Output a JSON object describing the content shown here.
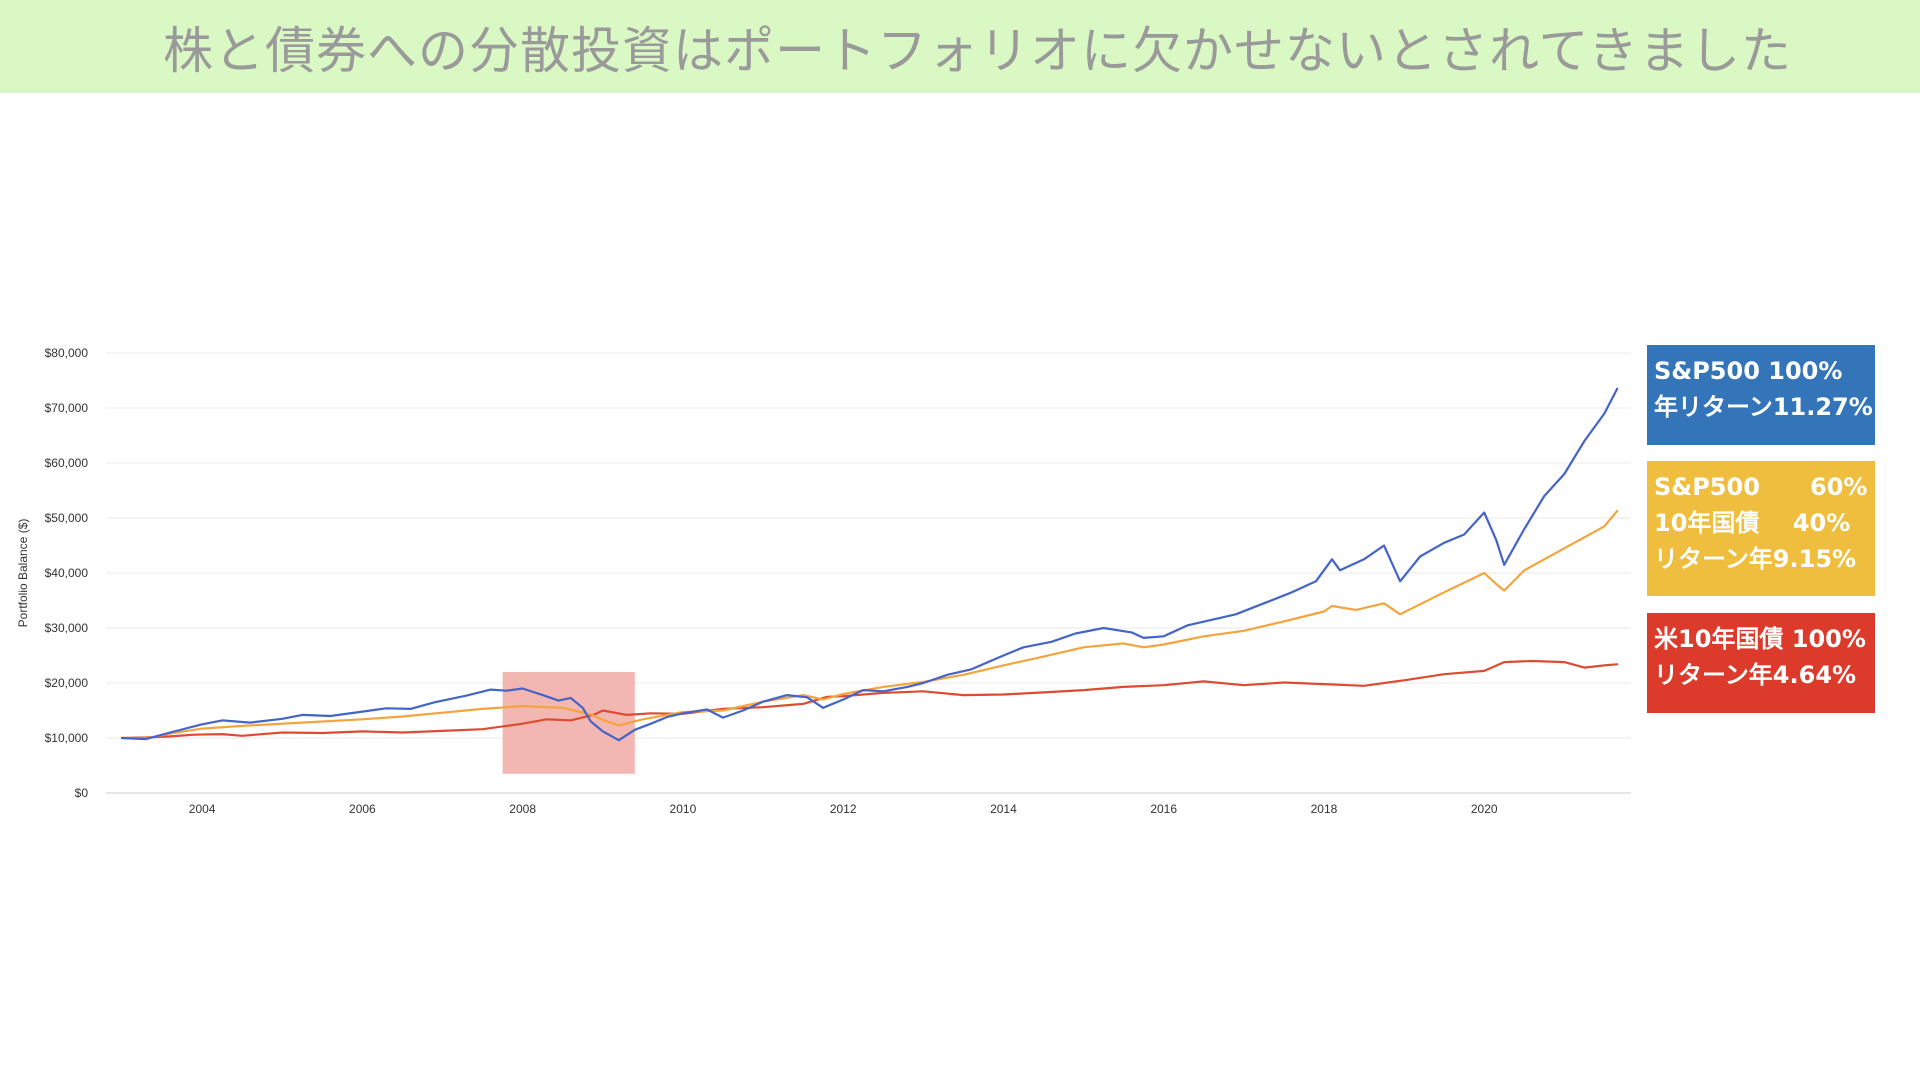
{
  "title": "株と債券への分散投資はポートフォリオに欠かせないとされてきました",
  "colors": {
    "title_bg": "#d9f8c4",
    "title_text": "#9a9a9a",
    "highlight": "#f0aaa4",
    "sp500": "#4464c8",
    "mix": "#f5a33c",
    "bond": "#dd4b33",
    "legend_sp500_bg": "#3375b8",
    "legend_mix_bg": "#efbe3e",
    "legend_bond_bg": "#dc3b2c"
  },
  "legend": [
    {
      "key": "sp500",
      "lines": [
        "S&P500 100%",
        "年リターン11.27%"
      ]
    },
    {
      "key": "mix",
      "lines": [
        "S&P500      60%",
        "10年国債    40%",
        "リターン年9.15%"
      ]
    },
    {
      "key": "bond",
      "lines": [
        "米10年国債 100%",
        "リターン年4.64%"
      ]
    }
  ],
  "chart_data": {
    "type": "line",
    "ylabel": "Portfolio Balance ($)",
    "xlabel": "",
    "x_range": [
      2003.0,
      2021.66
    ],
    "ylim": [
      0,
      80000
    ],
    "y_ticks": [
      "$0",
      "$10,000",
      "$20,000",
      "$30,000",
      "$40,000",
      "$50,000",
      "$60,000",
      "$70,000",
      "$80,000"
    ],
    "x_ticks": [
      "2004",
      "2006",
      "2008",
      "2010",
      "2012",
      "2014",
      "2016",
      "2018",
      "2020"
    ],
    "grid": true,
    "highlight_period": {
      "x": [
        2007.75,
        2009.4
      ],
      "y": [
        3500,
        22000
      ]
    },
    "series": [
      {
        "key": "sp500",
        "points": [
          [
            2003.0,
            10000
          ],
          [
            2003.3,
            9800
          ],
          [
            2003.6,
            11000
          ],
          [
            2004.0,
            12500
          ],
          [
            2004.25,
            13200
          ],
          [
            2004.6,
            12800
          ],
          [
            2005.0,
            13500
          ],
          [
            2005.25,
            14200
          ],
          [
            2005.6,
            14000
          ],
          [
            2006.0,
            14800
          ],
          [
            2006.3,
            15400
          ],
          [
            2006.6,
            15300
          ],
          [
            2006.9,
            16500
          ],
          [
            2007.3,
            17700
          ],
          [
            2007.6,
            18800
          ],
          [
            2007.8,
            18600
          ],
          [
            2008.0,
            19000
          ],
          [
            2008.25,
            17800
          ],
          [
            2008.45,
            16800
          ],
          [
            2008.6,
            17300
          ],
          [
            2008.75,
            15500
          ],
          [
            2008.85,
            13000
          ],
          [
            2009.0,
            11200
          ],
          [
            2009.2,
            9600
          ],
          [
            2009.4,
            11500
          ],
          [
            2009.6,
            12600
          ],
          [
            2009.8,
            13800
          ],
          [
            2010.0,
            14500
          ],
          [
            2010.3,
            15200
          ],
          [
            2010.5,
            13700
          ],
          [
            2010.75,
            15000
          ],
          [
            2011.0,
            16600
          ],
          [
            2011.3,
            17800
          ],
          [
            2011.55,
            17400
          ],
          [
            2011.75,
            15500
          ],
          [
            2012.0,
            17000
          ],
          [
            2012.25,
            18700
          ],
          [
            2012.5,
            18500
          ],
          [
            2012.8,
            19300
          ],
          [
            2013.0,
            20000
          ],
          [
            2013.3,
            21500
          ],
          [
            2013.6,
            22500
          ],
          [
            2014.0,
            25000
          ],
          [
            2014.25,
            26500
          ],
          [
            2014.6,
            27500
          ],
          [
            2014.9,
            29000
          ],
          [
            2015.25,
            30000
          ],
          [
            2015.6,
            29200
          ],
          [
            2015.75,
            28200
          ],
          [
            2016.0,
            28500
          ],
          [
            2016.3,
            30500
          ],
          [
            2016.6,
            31500
          ],
          [
            2016.9,
            32500
          ],
          [
            2017.25,
            34500
          ],
          [
            2017.6,
            36500
          ],
          [
            2017.9,
            38500
          ],
          [
            2018.1,
            42500
          ],
          [
            2018.2,
            40500
          ],
          [
            2018.5,
            42500
          ],
          [
            2018.75,
            45000
          ],
          [
            2018.95,
            38500
          ],
          [
            2019.2,
            43000
          ],
          [
            2019.5,
            45500
          ],
          [
            2019.75,
            47000
          ],
          [
            2020.0,
            51000
          ],
          [
            2020.15,
            46000
          ],
          [
            2020.25,
            41500
          ],
          [
            2020.5,
            48000
          ],
          [
            2020.75,
            54000
          ],
          [
            2021.0,
            58000
          ],
          [
            2021.25,
            64000
          ],
          [
            2021.5,
            69000
          ],
          [
            2021.66,
            73500
          ]
        ]
      },
      {
        "key": "mix",
        "points": [
          [
            2003.0,
            10000
          ],
          [
            2003.3,
            9900
          ],
          [
            2003.6,
            10800
          ],
          [
            2004.0,
            11700
          ],
          [
            2004.5,
            12200
          ],
          [
            2005.0,
            12600
          ],
          [
            2005.5,
            13000
          ],
          [
            2006.0,
            13400
          ],
          [
            2006.5,
            13900
          ],
          [
            2007.0,
            14600
          ],
          [
            2007.5,
            15300
          ],
          [
            2008.0,
            15800
          ],
          [
            2008.5,
            15500
          ],
          [
            2008.85,
            14300
          ],
          [
            2009.0,
            13300
          ],
          [
            2009.2,
            12300
          ],
          [
            2009.5,
            13400
          ],
          [
            2010.0,
            14700
          ],
          [
            2010.5,
            15000
          ],
          [
            2011.0,
            16600
          ],
          [
            2011.5,
            17800
          ],
          [
            2011.75,
            17000
          ],
          [
            2012.0,
            18000
          ],
          [
            2012.5,
            19300
          ],
          [
            2013.0,
            20200
          ],
          [
            2013.5,
            21500
          ],
          [
            2014.0,
            23200
          ],
          [
            2014.5,
            24800
          ],
          [
            2015.0,
            26500
          ],
          [
            2015.5,
            27200
          ],
          [
            2015.75,
            26500
          ],
          [
            2016.0,
            27000
          ],
          [
            2016.5,
            28500
          ],
          [
            2017.0,
            29500
          ],
          [
            2017.5,
            31200
          ],
          [
            2018.0,
            33000
          ],
          [
            2018.1,
            34000
          ],
          [
            2018.4,
            33300
          ],
          [
            2018.75,
            34500
          ],
          [
            2018.95,
            32500
          ],
          [
            2019.5,
            36500
          ],
          [
            2020.0,
            40000
          ],
          [
            2020.15,
            38000
          ],
          [
            2020.25,
            36800
          ],
          [
            2020.5,
            40500
          ],
          [
            2021.0,
            44500
          ],
          [
            2021.5,
            48500
          ],
          [
            2021.66,
            51300
          ]
        ]
      },
      {
        "key": "bond",
        "points": [
          [
            2003.0,
            10000
          ],
          [
            2003.3,
            10100
          ],
          [
            2003.6,
            10300
          ],
          [
            2003.9,
            10600
          ],
          [
            2004.25,
            10700
          ],
          [
            2004.5,
            10400
          ],
          [
            2005.0,
            11000
          ],
          [
            2005.5,
            10900
          ],
          [
            2006.0,
            11200
          ],
          [
            2006.5,
            11000
          ],
          [
            2007.0,
            11300
          ],
          [
            2007.5,
            11600
          ],
          [
            2008.0,
            12600
          ],
          [
            2008.3,
            13400
          ],
          [
            2008.6,
            13200
          ],
          [
            2008.9,
            14300
          ],
          [
            2009.0,
            15000
          ],
          [
            2009.3,
            14200
          ],
          [
            2009.6,
            14500
          ],
          [
            2010.0,
            14400
          ],
          [
            2010.5,
            15300
          ],
          [
            2011.0,
            15600
          ],
          [
            2011.5,
            16200
          ],
          [
            2011.8,
            17500
          ],
          [
            2012.0,
            17600
          ],
          [
            2012.5,
            18200
          ],
          [
            2013.0,
            18500
          ],
          [
            2013.5,
            17800
          ],
          [
            2014.0,
            17900
          ],
          [
            2014.5,
            18300
          ],
          [
            2015.0,
            18700
          ],
          [
            2015.5,
            19300
          ],
          [
            2016.0,
            19600
          ],
          [
            2016.5,
            20300
          ],
          [
            2017.0,
            19600
          ],
          [
            2017.5,
            20100
          ],
          [
            2018.0,
            19800
          ],
          [
            2018.5,
            19500
          ],
          [
            2019.0,
            20500
          ],
          [
            2019.5,
            21600
          ],
          [
            2020.0,
            22200
          ],
          [
            2020.25,
            23800
          ],
          [
            2020.6,
            24000
          ],
          [
            2021.0,
            23800
          ],
          [
            2021.25,
            22800
          ],
          [
            2021.5,
            23200
          ],
          [
            2021.66,
            23400
          ]
        ]
      }
    ]
  }
}
